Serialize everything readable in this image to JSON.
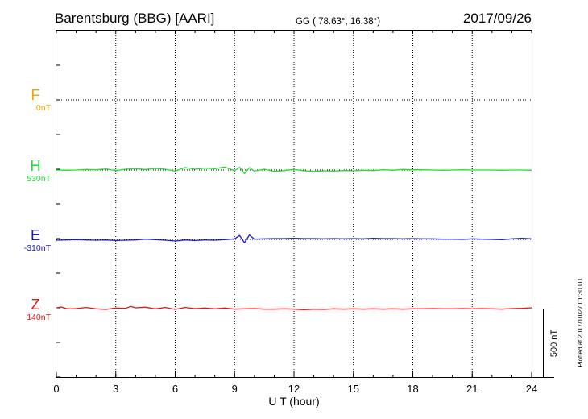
{
  "header": {
    "station": "Barentsburg (BBG)  [AARI]",
    "coords": "GG ( 78.63°,  16.38°)",
    "date": "2017/09/26"
  },
  "side_note": "Plotted at 2017/10/27 01:30 UT",
  "scale_label": "500 nT",
  "chart_data": {
    "type": "line",
    "xlabel": "U T (hour)",
    "ylabel": "",
    "xlim": [
      0,
      24
    ],
    "x_ticks": [
      "0",
      "3",
      "6",
      "9",
      "12",
      "15",
      "18",
      "21",
      "24"
    ],
    "grid": true,
    "scale_bar_nT": 500,
    "series": [
      {
        "name": "F",
        "baseline_label": "0nT",
        "color": "#f5a300",
        "values": []
      },
      {
        "name": "H",
        "baseline_label": "530nT",
        "color": "#22dd33",
        "x": [
          0,
          0.5,
          1,
          1.5,
          2,
          2.5,
          3,
          3.5,
          4,
          4.5,
          5,
          5.5,
          6,
          6.5,
          7,
          7.5,
          8,
          8.5,
          9,
          9.25,
          9.5,
          9.75,
          10,
          10.5,
          11,
          11.5,
          12,
          12.5,
          13,
          13.5,
          14,
          14.5,
          15,
          15.5,
          16,
          16.5,
          17,
          17.5,
          18,
          18.5,
          19,
          19.5,
          20,
          20.5,
          21,
          21.5,
          22,
          22.5,
          23,
          23.5,
          24
        ],
        "values": [
          0,
          -2,
          0,
          4,
          2,
          8,
          -4,
          6,
          10,
          4,
          12,
          6,
          -8,
          18,
          6,
          14,
          10,
          22,
          -6,
          20,
          -26,
          18,
          -8,
          6,
          -10,
          -4,
          4,
          -6,
          -10,
          -6,
          -8,
          -4,
          -6,
          -2,
          -4,
          2,
          -2,
          4,
          2,
          2,
          0,
          -2,
          0,
          2,
          0,
          0,
          0,
          -2,
          0,
          0,
          -2
        ]
      },
      {
        "name": "E",
        "baseline_label": "-310nT",
        "color": "#1a1acc",
        "x": [
          0,
          0.5,
          1,
          1.5,
          2,
          2.5,
          3,
          3.5,
          4,
          4.5,
          5,
          5.5,
          6,
          6.5,
          7,
          7.5,
          8,
          8.5,
          9,
          9.25,
          9.5,
          9.75,
          10,
          10.5,
          11,
          11.5,
          12,
          12.5,
          13,
          13.5,
          14,
          14.5,
          15,
          15.5,
          16,
          16.5,
          17,
          17.5,
          18,
          18.5,
          19,
          19.5,
          20,
          20.5,
          21,
          21.5,
          22,
          22.5,
          23,
          23.5,
          24
        ],
        "values": [
          -6,
          -4,
          -2,
          -4,
          -6,
          -4,
          -8,
          -6,
          -4,
          2,
          -2,
          -6,
          -12,
          -4,
          -8,
          -4,
          -6,
          -2,
          4,
          28,
          -24,
          32,
          2,
          4,
          6,
          6,
          8,
          6,
          6,
          4,
          6,
          4,
          6,
          4,
          8,
          6,
          6,
          4,
          6,
          4,
          4,
          2,
          2,
          0,
          4,
          2,
          0,
          -2,
          4,
          8,
          4
        ]
      },
      {
        "name": "Z",
        "baseline_label": "140nT",
        "color": "#ee1111",
        "x": [
          0,
          0.25,
          0.5,
          0.75,
          1,
          1.5,
          2,
          2.5,
          3,
          3.5,
          3.75,
          4,
          4.5,
          5,
          5.5,
          6,
          6.5,
          7,
          7.5,
          8,
          8.5,
          9,
          9.5,
          10,
          10.5,
          11,
          11.5,
          12,
          12.5,
          13,
          13.5,
          14,
          14.5,
          15,
          15.5,
          16,
          16.5,
          17,
          17.5,
          18,
          18.5,
          19,
          19.5,
          20,
          20.5,
          21,
          21.5,
          22,
          22.5,
          23,
          23.5,
          24
        ],
        "values": [
          6,
          12,
          0,
          -2,
          0,
          8,
          -2,
          -6,
          4,
          2,
          16,
          6,
          10,
          -2,
          8,
          -6,
          8,
          0,
          4,
          -2,
          4,
          -4,
          -2,
          0,
          -4,
          -4,
          -2,
          -4,
          -8,
          -4,
          -6,
          -2,
          -4,
          -2,
          -4,
          -2,
          -4,
          -2,
          -4,
          -2,
          -2,
          0,
          -2,
          -2,
          0,
          -2,
          0,
          -2,
          -4,
          0,
          2,
          6
        ]
      }
    ]
  }
}
